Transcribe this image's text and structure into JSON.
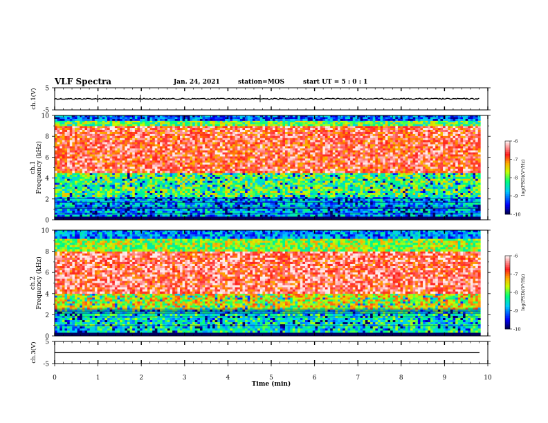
{
  "header": {
    "title": "VLF Spectra",
    "date": "Jan. 24, 2021",
    "station": "station=MOS",
    "start": "start UT = 5 : 0 : 1"
  },
  "chart_data": [
    {
      "type": "line",
      "ylabel": "ch.1(V)",
      "ylim": [
        -5,
        5
      ],
      "yticks": [
        "5",
        "-5"
      ],
      "series": [
        {
          "baseline": 0,
          "color": "#000000"
        }
      ]
    },
    {
      "type": "heatmap",
      "ylabel_top": "ch.1",
      "ylabel": "Frequency (kHz)",
      "ylim": [
        0,
        10
      ],
      "yticks": [
        "0",
        "2",
        "4",
        "6",
        "8",
        "10"
      ],
      "colorbar": {
        "label": "log(PSD)(V²/Hz)",
        "range": [
          -10,
          -6
        ],
        "ticks": [
          "-6",
          "-7",
          "-8",
          "-9",
          "-10"
        ]
      },
      "bands": [
        {
          "from_khz": 0.0,
          "to_khz": 0.3,
          "level": -10
        },
        {
          "from_khz": 0.3,
          "to_khz": 2.2,
          "level": -8.8
        },
        {
          "from_khz": 2.2,
          "to_khz": 4.5,
          "level": -8.0
        },
        {
          "from_khz": 4.5,
          "to_khz": 9.0,
          "level": -6.6
        },
        {
          "from_khz": 9.0,
          "to_khz": 9.5,
          "level": -8.0
        },
        {
          "from_khz": 9.5,
          "to_khz": 10,
          "level": -9.2
        }
      ]
    },
    {
      "type": "heatmap",
      "ylabel_top": "ch.2",
      "ylabel": "Frequency (kHz)",
      "ylim": [
        0,
        10
      ],
      "yticks": [
        "0",
        "2",
        "4",
        "6",
        "8",
        "10"
      ],
      "colorbar": {
        "label": "log(PSD)(V²/Hz)",
        "range": [
          -10,
          -6
        ],
        "ticks": [
          "-6",
          "-7",
          "-8",
          "-9",
          "-10"
        ]
      },
      "bands": [
        {
          "from_khz": 0.0,
          "to_khz": 0.3,
          "level": -10
        },
        {
          "from_khz": 0.3,
          "to_khz": 2.5,
          "level": -8.4
        },
        {
          "from_khz": 2.5,
          "to_khz": 4.0,
          "level": -7.5
        },
        {
          "from_khz": 4.0,
          "to_khz": 8.0,
          "level": -6.5
        },
        {
          "from_khz": 8.0,
          "to_khz": 9.2,
          "level": -7.8
        },
        {
          "from_khz": 9.2,
          "to_khz": 10,
          "level": -9.0
        }
      ]
    },
    {
      "type": "line",
      "ylabel": "ch.3(V)",
      "ylim": [
        -5,
        5
      ],
      "yticks": [
        "5",
        "-5"
      ],
      "series": [
        {
          "baseline": 0,
          "color": "#000000"
        }
      ]
    }
  ],
  "xaxis": {
    "label": "Time (min)",
    "xlim": [
      0,
      10
    ],
    "ticks": [
      "0",
      "1",
      "2",
      "3",
      "4",
      "5",
      "6",
      "7",
      "8",
      "9",
      "10"
    ]
  }
}
